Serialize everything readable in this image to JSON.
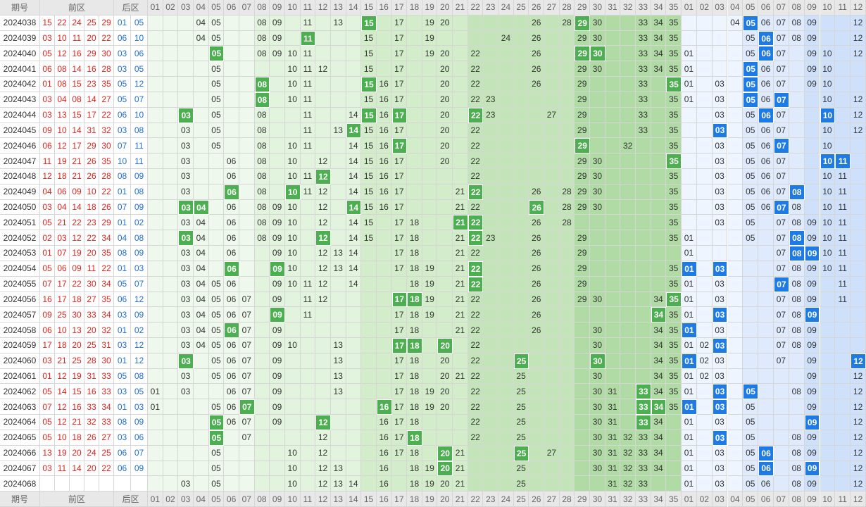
{
  "header": {
    "period": "期号",
    "front": "前区",
    "back": "后区"
  },
  "front_columns": [
    "01",
    "02",
    "03",
    "04",
    "05",
    "06",
    "07",
    "08",
    "09",
    "10",
    "11",
    "12",
    "13",
    "14",
    "15",
    "16",
    "17",
    "18",
    "19",
    "20",
    "21",
    "22",
    "23",
    "24",
    "25",
    "26",
    "27",
    "28",
    "29",
    "30",
    "31",
    "32",
    "33",
    "34",
    "35"
  ],
  "back_columns": [
    "01",
    "02",
    "03",
    "04",
    "05",
    "06",
    "07",
    "08",
    "09",
    "10",
    "11",
    "12"
  ],
  "rows": [
    {
      "period": "2024038",
      "front": [
        "15",
        "22",
        "24",
        "25",
        "29"
      ],
      "back": [
        "01",
        "05"
      ],
      "front_trend": [
        "04",
        "05",
        "08",
        "09",
        "11",
        "13",
        "15",
        "17",
        "19",
        "20",
        "26",
        "28",
        "29",
        "30",
        "33",
        "34",
        "35"
      ],
      "back_trend": [
        "04",
        "05",
        "06",
        "07",
        "08",
        "09",
        "12"
      ]
    },
    {
      "period": "2024039",
      "front": [
        "03",
        "10",
        "11",
        "20",
        "22"
      ],
      "back": [
        "06",
        "10"
      ],
      "front_trend": [
        "04",
        "05",
        "08",
        "09",
        "11",
        "15",
        "17",
        "19",
        "24",
        "26",
        "29",
        "30",
        "33",
        "34",
        "35"
      ],
      "back_trend": [
        "05",
        "06",
        "07",
        "08",
        "09",
        "12"
      ]
    },
    {
      "period": "2024040",
      "front": [
        "05",
        "12",
        "16",
        "29",
        "30"
      ],
      "back": [
        "03",
        "06"
      ],
      "front_trend": [
        "05",
        "08",
        "09",
        "10",
        "11",
        "15",
        "17",
        "19",
        "20",
        "22",
        "26",
        "29",
        "30",
        "33",
        "34",
        "35"
      ],
      "back_trend": [
        "01",
        "05",
        "06",
        "07",
        "09",
        "10",
        "12"
      ]
    },
    {
      "period": "2024041",
      "front": [
        "06",
        "08",
        "14",
        "16",
        "28"
      ],
      "back": [
        "03",
        "05"
      ],
      "front_trend": [
        "05",
        "10",
        "11",
        "12",
        "15",
        "17",
        "20",
        "22",
        "26",
        "29",
        "30",
        "33",
        "34",
        "35"
      ],
      "back_trend": [
        "01",
        "05",
        "06",
        "07",
        "09",
        "10"
      ]
    },
    {
      "period": "2024042",
      "front": [
        "01",
        "08",
        "15",
        "23",
        "35"
      ],
      "back": [
        "05",
        "12"
      ],
      "front_trend": [
        "05",
        "08",
        "10",
        "11",
        "15",
        "16",
        "17",
        "20",
        "22",
        "26",
        "29",
        "33",
        "35"
      ],
      "back_trend": [
        "01",
        "03",
        "05",
        "06",
        "07",
        "09",
        "10"
      ]
    },
    {
      "period": "2024043",
      "front": [
        "03",
        "04",
        "08",
        "14",
        "27"
      ],
      "back": [
        "05",
        "07"
      ],
      "front_trend": [
        "05",
        "08",
        "10",
        "11",
        "15",
        "16",
        "17",
        "20",
        "22",
        "23",
        "29",
        "33",
        "35"
      ],
      "back_trend": [
        "01",
        "03",
        "05",
        "06",
        "07",
        "10",
        "12"
      ]
    },
    {
      "period": "2024044",
      "front": [
        "03",
        "13",
        "15",
        "17",
        "22"
      ],
      "back": [
        "06",
        "10"
      ],
      "front_trend": [
        "03",
        "05",
        "08",
        "11",
        "14",
        "15",
        "16",
        "17",
        "20",
        "22",
        "23",
        "27",
        "29",
        "33",
        "35"
      ],
      "back_trend": [
        "03",
        "05",
        "06",
        "07",
        "10",
        "12"
      ]
    },
    {
      "period": "2024045",
      "front": [
        "09",
        "10",
        "14",
        "31",
        "32"
      ],
      "back": [
        "03",
        "08"
      ],
      "front_trend": [
        "03",
        "05",
        "08",
        "11",
        "13",
        "14",
        "15",
        "16",
        "17",
        "20",
        "22",
        "29",
        "33",
        "35"
      ],
      "back_trend": [
        "03",
        "05",
        "06",
        "07",
        "10",
        "12"
      ]
    },
    {
      "period": "2024046",
      "front": [
        "06",
        "12",
        "17",
        "29",
        "30"
      ],
      "back": [
        "07",
        "11"
      ],
      "front_trend": [
        "03",
        "05",
        "08",
        "10",
        "11",
        "14",
        "15",
        "16",
        "17",
        "20",
        "22",
        "29",
        "32",
        "35"
      ],
      "back_trend": [
        "03",
        "05",
        "06",
        "07",
        "10"
      ]
    },
    {
      "period": "2024047",
      "front": [
        "11",
        "19",
        "21",
        "26",
        "35"
      ],
      "back": [
        "10",
        "11"
      ],
      "front_trend": [
        "03",
        "06",
        "08",
        "10",
        "12",
        "14",
        "15",
        "16",
        "17",
        "20",
        "22",
        "29",
        "30",
        "35"
      ],
      "back_trend": [
        "03",
        "05",
        "06",
        "07",
        "10",
        "11"
      ]
    },
    {
      "period": "2024048",
      "front": [
        "12",
        "18",
        "21",
        "26",
        "28"
      ],
      "back": [
        "08",
        "09"
      ],
      "front_trend": [
        "03",
        "06",
        "08",
        "10",
        "11",
        "12",
        "14",
        "15",
        "16",
        "17",
        "22",
        "29",
        "30",
        "35"
      ],
      "back_trend": [
        "03",
        "05",
        "06",
        "07",
        "10",
        "11"
      ]
    },
    {
      "period": "2024049",
      "front": [
        "04",
        "06",
        "09",
        "10",
        "22"
      ],
      "back": [
        "01",
        "08"
      ],
      "front_trend": [
        "03",
        "06",
        "08",
        "10",
        "11",
        "12",
        "14",
        "15",
        "16",
        "17",
        "21",
        "22",
        "26",
        "28",
        "29",
        "30",
        "35"
      ],
      "back_trend": [
        "03",
        "05",
        "06",
        "07",
        "08",
        "10",
        "11"
      ]
    },
    {
      "period": "2024050",
      "front": [
        "03",
        "04",
        "14",
        "18",
        "26"
      ],
      "back": [
        "07",
        "09"
      ],
      "front_trend": [
        "03",
        "04",
        "06",
        "08",
        "09",
        "10",
        "12",
        "14",
        "15",
        "16",
        "17",
        "21",
        "22",
        "26",
        "28",
        "29",
        "30",
        "35"
      ],
      "back_trend": [
        "03",
        "05",
        "06",
        "07",
        "08",
        "10",
        "11"
      ]
    },
    {
      "period": "2024051",
      "front": [
        "05",
        "21",
        "22",
        "23",
        "29"
      ],
      "back": [
        "01",
        "02"
      ],
      "front_trend": [
        "03",
        "04",
        "06",
        "08",
        "09",
        "10",
        "12",
        "14",
        "15",
        "17",
        "18",
        "21",
        "22",
        "26",
        "28",
        "35"
      ],
      "back_trend": [
        "03",
        "05",
        "07",
        "08",
        "09",
        "10",
        "11"
      ]
    },
    {
      "period": "2024052",
      "front": [
        "02",
        "03",
        "12",
        "22",
        "34"
      ],
      "back": [
        "04",
        "08"
      ],
      "front_trend": [
        "03",
        "04",
        "06",
        "08",
        "09",
        "10",
        "12",
        "14",
        "15",
        "17",
        "18",
        "21",
        "22",
        "23",
        "26",
        "29",
        "35"
      ],
      "back_trend": [
        "01",
        "05",
        "07",
        "08",
        "09",
        "10",
        "11"
      ]
    },
    {
      "period": "2024053",
      "front": [
        "01",
        "07",
        "19",
        "20",
        "35"
      ],
      "back": [
        "08",
        "09"
      ],
      "front_trend": [
        "03",
        "04",
        "06",
        "09",
        "10",
        "12",
        "13",
        "14",
        "17",
        "18",
        "21",
        "22",
        "26",
        "29"
      ],
      "back_trend": [
        "01",
        "07",
        "08",
        "09",
        "10",
        "11"
      ]
    },
    {
      "period": "2024054",
      "front": [
        "05",
        "06",
        "09",
        "11",
        "22"
      ],
      "back": [
        "01",
        "03"
      ],
      "front_trend": [
        "03",
        "04",
        "06",
        "09",
        "10",
        "12",
        "13",
        "14",
        "17",
        "18",
        "19",
        "21",
        "22",
        "26",
        "29",
        "35"
      ],
      "back_trend": [
        "01",
        "03",
        "07",
        "08",
        "09",
        "10",
        "11"
      ]
    },
    {
      "period": "2024055",
      "front": [
        "07",
        "17",
        "22",
        "30",
        "34"
      ],
      "back": [
        "05",
        "07"
      ],
      "front_trend": [
        "03",
        "04",
        "05",
        "06",
        "09",
        "10",
        "11",
        "12",
        "14",
        "18",
        "19",
        "21",
        "22",
        "26",
        "29",
        "35"
      ],
      "back_trend": [
        "01",
        "03",
        "07",
        "08",
        "09",
        "11"
      ]
    },
    {
      "period": "2024056",
      "front": [
        "16",
        "17",
        "18",
        "27",
        "35"
      ],
      "back": [
        "06",
        "12"
      ],
      "front_trend": [
        "03",
        "04",
        "05",
        "06",
        "07",
        "09",
        "11",
        "12",
        "17",
        "18",
        "19",
        "21",
        "22",
        "26",
        "29",
        "30",
        "34",
        "35"
      ],
      "back_trend": [
        "01",
        "03",
        "07",
        "08",
        "09",
        "11"
      ]
    },
    {
      "period": "2024057",
      "front": [
        "09",
        "25",
        "30",
        "33",
        "34"
      ],
      "back": [
        "03",
        "09"
      ],
      "front_trend": [
        "03",
        "04",
        "05",
        "06",
        "07",
        "09",
        "11",
        "17",
        "18",
        "19",
        "21",
        "22",
        "26",
        "34",
        "35"
      ],
      "back_trend": [
        "01",
        "03",
        "07",
        "08",
        "09"
      ]
    },
    {
      "period": "2024058",
      "front": [
        "06",
        "10",
        "13",
        "20",
        "32"
      ],
      "back": [
        "01",
        "02"
      ],
      "front_trend": [
        "03",
        "04",
        "05",
        "06",
        "07",
        "09",
        "17",
        "18",
        "21",
        "22",
        "26",
        "30",
        "34",
        "35"
      ],
      "back_trend": [
        "01",
        "03",
        "07",
        "08",
        "09"
      ]
    },
    {
      "period": "2024059",
      "front": [
        "17",
        "18",
        "20",
        "25",
        "31"
      ],
      "back": [
        "03",
        "12"
      ],
      "front_trend": [
        "03",
        "04",
        "05",
        "06",
        "07",
        "09",
        "10",
        "13",
        "17",
        "18",
        "20",
        "22",
        "30",
        "34",
        "35"
      ],
      "back_trend": [
        "01",
        "02",
        "03",
        "07",
        "08",
        "09"
      ]
    },
    {
      "period": "2024060",
      "front": [
        "03",
        "21",
        "25",
        "28",
        "30"
      ],
      "back": [
        "01",
        "12"
      ],
      "front_trend": [
        "03",
        "05",
        "06",
        "07",
        "09",
        "13",
        "17",
        "18",
        "20",
        "22",
        "25",
        "30",
        "34",
        "35"
      ],
      "back_trend": [
        "01",
        "02",
        "03",
        "07",
        "09",
        "12"
      ]
    },
    {
      "period": "2024061",
      "front": [
        "01",
        "12",
        "19",
        "31",
        "33"
      ],
      "back": [
        "05",
        "08"
      ],
      "front_trend": [
        "03",
        "05",
        "06",
        "07",
        "09",
        "13",
        "17",
        "18",
        "20",
        "21",
        "22",
        "25",
        "30",
        "34",
        "35"
      ],
      "back_trend": [
        "01",
        "02",
        "03",
        "09",
        "12"
      ]
    },
    {
      "period": "2024062",
      "front": [
        "05",
        "14",
        "15",
        "16",
        "33"
      ],
      "back": [
        "03",
        "05"
      ],
      "front_trend": [
        "01",
        "03",
        "06",
        "07",
        "09",
        "13",
        "17",
        "18",
        "19",
        "20",
        "22",
        "25",
        "30",
        "31",
        "33",
        "34",
        "35"
      ],
      "back_trend": [
        "01",
        "03",
        "05",
        "08",
        "09",
        "12"
      ]
    },
    {
      "period": "2024063",
      "front": [
        "07",
        "12",
        "16",
        "33",
        "34"
      ],
      "back": [
        "01",
        "03"
      ],
      "front_trend": [
        "01",
        "05",
        "06",
        "07",
        "09",
        "16",
        "17",
        "18",
        "19",
        "20",
        "22",
        "25",
        "30",
        "31",
        "33",
        "34",
        "35"
      ],
      "back_trend": [
        "01",
        "03",
        "05",
        "09",
        "12"
      ]
    },
    {
      "period": "2024064",
      "front": [
        "05",
        "12",
        "21",
        "32",
        "33"
      ],
      "back": [
        "08",
        "09"
      ],
      "front_trend": [
        "05",
        "06",
        "07",
        "09",
        "12",
        "16",
        "17",
        "18",
        "22",
        "25",
        "30",
        "31",
        "33",
        "34"
      ],
      "back_trend": [
        "01",
        "03",
        "05",
        "09",
        "12"
      ]
    },
    {
      "period": "2024065",
      "front": [
        "05",
        "10",
        "18",
        "26",
        "27"
      ],
      "back": [
        "03",
        "06"
      ],
      "front_trend": [
        "05",
        "07",
        "12",
        "16",
        "17",
        "18",
        "22",
        "25",
        "30",
        "31",
        "32",
        "33",
        "34"
      ],
      "back_trend": [
        "01",
        "03",
        "05",
        "08",
        "09",
        "12"
      ]
    },
    {
      "period": "2024066",
      "front": [
        "13",
        "19",
        "20",
        "24",
        "25"
      ],
      "back": [
        "06",
        "07"
      ],
      "front_trend": [
        "05",
        "10",
        "12",
        "16",
        "17",
        "18",
        "20",
        "21",
        "25",
        "27",
        "30",
        "31",
        "32",
        "33",
        "34"
      ],
      "back_trend": [
        "01",
        "03",
        "05",
        "06",
        "08",
        "09",
        "12"
      ]
    },
    {
      "period": "2024067",
      "front": [
        "03",
        "11",
        "14",
        "20",
        "22"
      ],
      "back": [
        "06",
        "09"
      ],
      "front_trend": [
        "05",
        "10",
        "12",
        "13",
        "16",
        "18",
        "19",
        "20",
        "21",
        "25",
        "30",
        "31",
        "32",
        "33",
        "34"
      ],
      "back_trend": [
        "01",
        "03",
        "05",
        "06",
        "08",
        "09",
        "12"
      ]
    },
    {
      "period": "2024068",
      "front": [],
      "back": [],
      "front_trend": [
        "03",
        "05",
        "10",
        "12",
        "13",
        "14",
        "16",
        "18",
        "19",
        "20",
        "21",
        "25",
        "31",
        "32",
        "33"
      ],
      "back_trend": [
        "01",
        "03",
        "05",
        "06",
        "08",
        "09",
        "12"
      ]
    }
  ]
}
